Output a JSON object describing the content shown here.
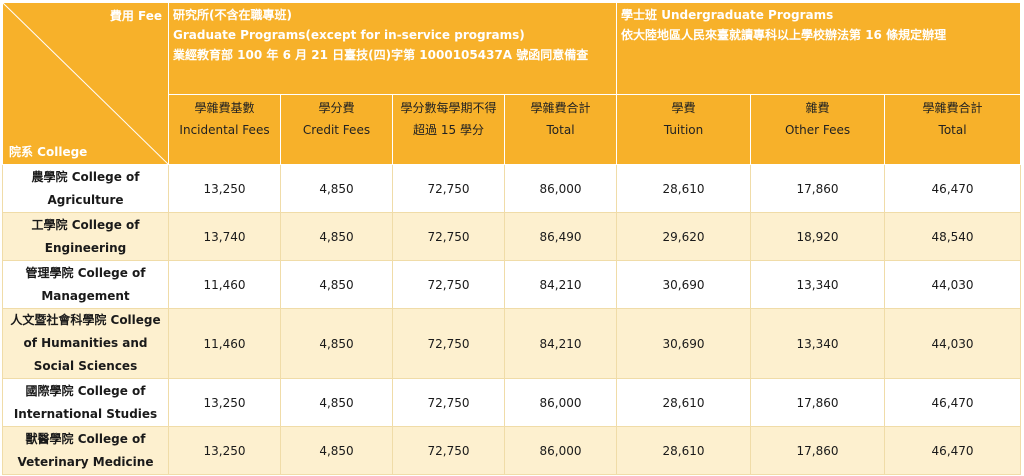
{
  "header": {
    "corner": {
      "fee": "費用 Fee",
      "college": "院系 College"
    },
    "graduate": {
      "line1": "研究所(不含在職專班)",
      "line2": "Graduate Programs(except for in-service programs)",
      "line3": "業經教育部 100 年 6 月 21 日臺技(四)字第 1000105437A 號函同意備查"
    },
    "undergraduate": {
      "line1": "學士班 Undergraduate Programs",
      "line2": "依大陸地區人民來臺就讀專科以上學校辦法第 16 條規定辦理"
    },
    "columns": [
      {
        "zh": "學雜費基數",
        "en": "Incidental Fees"
      },
      {
        "zh": "學分費",
        "en": "Credit Fees"
      },
      {
        "zh": "學分數每學期不得超過 15 學分",
        "en": ""
      },
      {
        "zh": "學雜費合計",
        "en": "Total"
      },
      {
        "zh": "學費",
        "en": "Tuition"
      },
      {
        "zh": "雜費",
        "en": "Other Fees"
      },
      {
        "zh": "學雜費合計",
        "en": "Total"
      }
    ]
  },
  "rows": [
    {
      "college": "農學院 College of Agriculture",
      "values": [
        "13,250",
        "4,850",
        "72,750",
        "86,000",
        "28,610",
        "17,860",
        "46,470"
      ]
    },
    {
      "college": "工學院 College of Engineering",
      "values": [
        "13,740",
        "4,850",
        "72,750",
        "86,490",
        "29,620",
        "18,920",
        "48,540"
      ]
    },
    {
      "college": "管理學院 College of Management",
      "values": [
        "11,460",
        "4,850",
        "72,750",
        "84,210",
        "30,690",
        "13,340",
        "44,030"
      ]
    },
    {
      "college": "人文暨社會科學院 College of Humanities and Social Sciences",
      "values": [
        "11,460",
        "4,850",
        "72,750",
        "84,210",
        "30,690",
        "13,340",
        "44,030"
      ]
    },
    {
      "college": "國際學院 College of International Studies",
      "values": [
        "13,250",
        "4,850",
        "72,750",
        "86,000",
        "28,610",
        "17,860",
        "46,470"
      ]
    },
    {
      "college": "獸醫學院 College of Veterinary Medicine",
      "values": [
        "13,250",
        "4,850",
        "72,750",
        "86,000",
        "28,610",
        "17,860",
        "46,470"
      ]
    }
  ],
  "colors": {
    "header_bg": "#f7b12a",
    "row_alt_bg": "#fdf0cf",
    "row_bg": "#ffffff"
  }
}
